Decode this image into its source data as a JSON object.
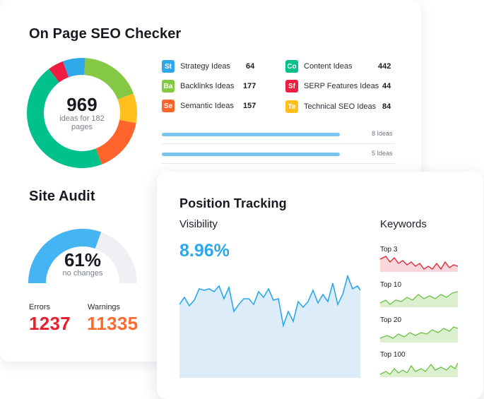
{
  "onpage": {
    "title": "On Page SEO Checker",
    "total": "969",
    "subtitle": "ideas for 182 pages",
    "legend": [
      {
        "badge": "St",
        "label": "Strategy Ideas",
        "value": "64",
        "color": "#2fa8ea"
      },
      {
        "badge": "Ba",
        "label": "Backlinks Ideas",
        "value": "177",
        "color": "#84c843"
      },
      {
        "badge": "Se",
        "label": "Semantic Ideas",
        "value": "157",
        "color": "#ff642d"
      },
      {
        "badge": "Co",
        "label": "Content Ideas",
        "value": "442",
        "color": "#00c08b"
      },
      {
        "badge": "Sf",
        "label": "SERP Features Ideas",
        "value": "44",
        "color": "#ee1e43"
      },
      {
        "badge": "Te",
        "label": "Technical SEO Ideas",
        "value": "84",
        "color": "#ffc01e"
      }
    ],
    "bars": [
      {
        "label": "8 Ideas",
        "fraction": 1.0
      },
      {
        "label": "5 Ideas",
        "fraction": 1.0
      }
    ]
  },
  "audit": {
    "title": "Site Audit",
    "percent": "61%",
    "percent_value": 61,
    "subtitle": "no changes",
    "errors_label": "Errors",
    "errors_value": "1237",
    "warnings_label": "Warnings",
    "warnings_value": "11335",
    "colors": {
      "fill": "#45b4f2",
      "track": "#eef0f4",
      "errors": "#e5202f",
      "warnings": "#ff6a2e"
    }
  },
  "tracking": {
    "title": "Position Tracking",
    "visibility_label": "Visibility",
    "visibility_value": "8.96%",
    "keywords_label": "Keywords",
    "keywords": [
      {
        "label": "Top 3"
      },
      {
        "label": "Top 10"
      },
      {
        "label": "Top 20"
      },
      {
        "label": "Top 100"
      }
    ]
  }
}
